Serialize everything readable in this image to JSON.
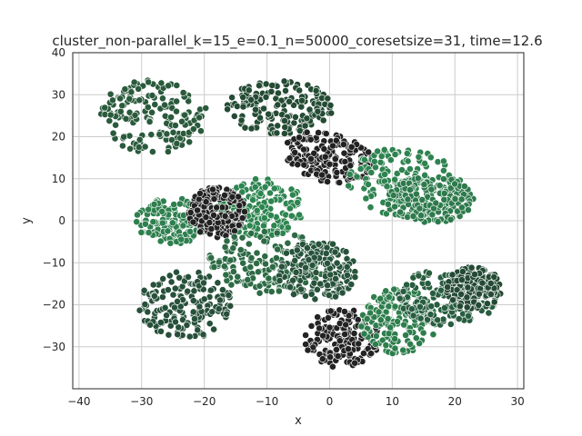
{
  "chart_data": {
    "type": "scatter",
    "title": "cluster_non-parallel_k=15_e=0.1_n=50000_coresetsize=31, time=12.6",
    "xlabel": "x",
    "ylabel": "y",
    "xlim": [
      -41,
      31
    ],
    "ylim": [
      -40,
      40
    ],
    "xticks": [
      -40,
      -30,
      -20,
      -10,
      0,
      10,
      20,
      30
    ],
    "yticks": [
      -30,
      -20,
      -10,
      0,
      10,
      20,
      30,
      40
    ],
    "grid": true,
    "marker_edge_color": "#ffffff",
    "clusters": [
      {
        "cx": -28,
        "cy": 25,
        "rx": 8.5,
        "ry": 9,
        "color": "#2a5a3c",
        "angle": 0
      },
      {
        "cx": -8,
        "cy": 27,
        "rx": 8.5,
        "ry": 6.5,
        "color": "#244b33",
        "angle": 0
      },
      {
        "cx": 0,
        "cy": 15,
        "rx": 8,
        "ry": 5.5,
        "color": "#222222",
        "angle": -30
      },
      {
        "cx": 12,
        "cy": 9,
        "rx": 9.5,
        "ry": 8,
        "color": "#2f8350",
        "angle": -20
      },
      {
        "cx": 16,
        "cy": 5,
        "rx": 7,
        "ry": 5.5,
        "color": "#2e7a4c",
        "angle": 0
      },
      {
        "cx": -11,
        "cy": 3,
        "rx": 7,
        "ry": 7,
        "color": "#2d8550",
        "angle": 0
      },
      {
        "cx": -25,
        "cy": 0,
        "rx": 6,
        "ry": 5.5,
        "color": "#2e7f4e",
        "angle": 0
      },
      {
        "cx": -18,
        "cy": 2,
        "rx": 4.5,
        "ry": 6,
        "color": "#222222",
        "angle": 0
      },
      {
        "cx": -10,
        "cy": -10,
        "rx": 9.5,
        "ry": 7.5,
        "color": "#2d6b45",
        "angle": 0
      },
      {
        "cx": -2,
        "cy": -12,
        "rx": 6.5,
        "ry": 7,
        "color": "#27533a",
        "angle": 0
      },
      {
        "cx": -23,
        "cy": -20,
        "rx": 7.5,
        "ry": 8,
        "color": "#27503a",
        "angle": 0
      },
      {
        "cx": 2,
        "cy": -28,
        "rx": 6,
        "ry": 7,
        "color": "#232323",
        "angle": 0
      },
      {
        "cx": 11,
        "cy": -24,
        "rx": 6,
        "ry": 8,
        "color": "#2d7e4c",
        "angle": 0
      },
      {
        "cx": 19,
        "cy": -18,
        "rx": 8,
        "ry": 7,
        "color": "#285d3f",
        "angle": 0
      },
      {
        "cx": 23,
        "cy": -16,
        "rx": 4.5,
        "ry": 5,
        "color": "#244a33",
        "angle": 0
      }
    ]
  }
}
